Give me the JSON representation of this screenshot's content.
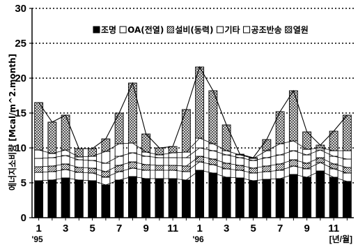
{
  "chart_data": {
    "type": "bar",
    "stacked": true,
    "title": "",
    "ylabel": "에너지소비량 [Mcal/m^2.month]",
    "xlabel": "",
    "ylim": [
      0,
      30
    ],
    "yticks": [
      0,
      5,
      10,
      15,
      20,
      25,
      30
    ],
    "grid": "horizontal dotted",
    "legend_position": "top-right",
    "x_unit_label": "[년/월]",
    "x_tick_labels": [
      "1",
      "3",
      "5",
      "7",
      "9",
      "11",
      "1",
      "3",
      "5",
      "7",
      "9",
      "11"
    ],
    "year_labels": [
      "'95",
      "'96"
    ],
    "categories": [
      "95-1",
      "95-2",
      "95-3",
      "95-4",
      "95-5",
      "95-6",
      "95-7",
      "95-8",
      "95-9",
      "95-10",
      "95-11",
      "95-12",
      "96-1",
      "96-2",
      "96-3",
      "96-4",
      "96-5",
      "96-6",
      "96-7",
      "96-8",
      "96-9",
      "96-10",
      "96-11",
      "96-12"
    ],
    "series": [
      {
        "name": "조명",
        "color": "#000000",
        "values": [
          5.3,
          5.4,
          5.7,
          5.4,
          5.3,
          4.7,
          5.4,
          5.9,
          5.6,
          5.6,
          5.6,
          5.4,
          6.8,
          6.4,
          5.8,
          5.7,
          5.3,
          5.5,
          5.6,
          6.2,
          5.8,
          6.7,
          5.8,
          5.2
        ]
      },
      {
        "name": "OA(전열)",
        "color": "#ffffff",
        "values": [
          1.2,
          1.2,
          1.2,
          1.1,
          1.1,
          1.1,
          1.2,
          1.2,
          1.2,
          1.2,
          1.2,
          1.2,
          1.2,
          1.2,
          1.2,
          1.1,
          1.1,
          1.1,
          1.2,
          1.2,
          1.2,
          1.2,
          1.2,
          1.2
        ]
      },
      {
        "name": "설비(동력)",
        "color": "#cccccc",
        "values": [
          0.8,
          0.8,
          0.8,
          0.7,
          0.7,
          0.8,
          0.9,
          0.9,
          0.8,
          0.7,
          0.7,
          0.8,
          0.8,
          0.8,
          0.8,
          0.7,
          0.7,
          0.8,
          0.9,
          0.9,
          0.8,
          0.7,
          0.7,
          0.8
        ]
      },
      {
        "name": "기타",
        "color": "#ffffff",
        "values": [
          1.2,
          1.2,
          1.2,
          1.1,
          1.1,
          1.2,
          1.3,
          1.3,
          1.2,
          1.1,
          1.1,
          1.2,
          1.2,
          1.2,
          1.2,
          1.1,
          1.1,
          1.2,
          1.3,
          1.3,
          1.2,
          1.1,
          1.1,
          1.2
        ]
      },
      {
        "name": "공조반송",
        "color": "#ffffff",
        "values": [
          1.2,
          0.6,
          0.8,
          0.4,
          0.6,
          1.7,
          1.8,
          1.4,
          0.6,
          0.4,
          0.7,
          0.8,
          1.4,
          1.0,
          0.6,
          0.4,
          0.3,
          1.0,
          1.6,
          1.4,
          0.8,
          0.3,
          0.8,
          1.2
        ]
      },
      {
        "name": "열원",
        "color": "#bbbbbb",
        "values": [
          6.8,
          4.5,
          5.0,
          1.2,
          1.1,
          1.8,
          4.4,
          8.6,
          2.6,
          1.0,
          0.9,
          6.1,
          10.2,
          7.6,
          3.7,
          0.1,
          0.1,
          1.6,
          4.6,
          7.2,
          2.5,
          0.4,
          2.8,
          5.1
        ]
      }
    ]
  }
}
